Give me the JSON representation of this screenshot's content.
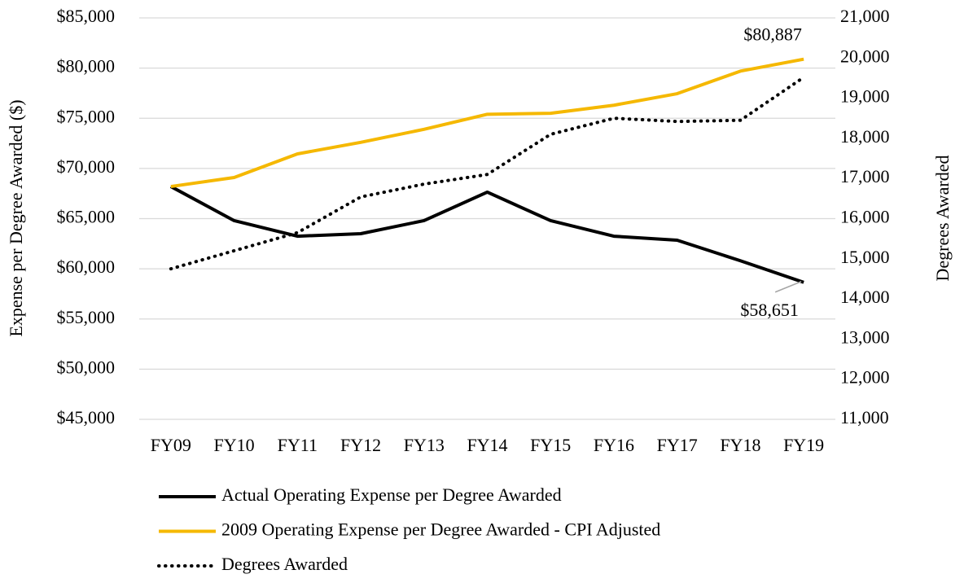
{
  "chart_data": {
    "type": "line",
    "categories": [
      "FY09",
      "FY10",
      "FY11",
      "FY12",
      "FY13",
      "FY14",
      "FY15",
      "FY16",
      "FY17",
      "FY18",
      "FY19"
    ],
    "series": [
      {
        "name": "Actual Operating Expense per Degree Awarded",
        "color": "#000000",
        "style": "solid",
        "values": [
          68200,
          64800,
          63250,
          63500,
          64800,
          67640,
          64800,
          63250,
          62850,
          60800,
          58651
        ],
        "value_labels": [
          null,
          null,
          null,
          null,
          null,
          null,
          null,
          null,
          null,
          null,
          "$58,651"
        ]
      },
      {
        "name": "2009 Operating Expense per Degree Awarded - CPI Adjusted",
        "color": "#f5b800",
        "style": "solid",
        "values": [
          68200,
          69100,
          71450,
          72600,
          73900,
          75400,
          75500,
          76300,
          77450,
          79700,
          80887
        ],
        "value_labels": [
          null,
          null,
          null,
          null,
          null,
          null,
          null,
          null,
          null,
          null,
          "$80,887"
        ]
      },
      {
        "name": "Degrees Awarded",
        "color": "#000000",
        "style": "dotted",
        "axis": "y2",
        "values": [
          14750,
          15200,
          15650,
          16540,
          16860,
          17100,
          18100,
          18500,
          18420,
          18450,
          19520
        ]
      }
    ],
    "ylabel": "Expense per Degree Awarded ($)",
    "y2label": "Degrees Awarded",
    "ylim": [
      45000,
      85000
    ],
    "yticks": [
      {
        "value": 45000,
        "label": "$45,000"
      },
      {
        "value": 50000,
        "label": "$50,000"
      },
      {
        "value": 55000,
        "label": "$55,000"
      },
      {
        "value": 60000,
        "label": "$60,000"
      },
      {
        "value": 65000,
        "label": "$65,000"
      },
      {
        "value": 70000,
        "label": "$70,000"
      },
      {
        "value": 75000,
        "label": "$75,000"
      },
      {
        "value": 80000,
        "label": "$80,000"
      },
      {
        "value": 85000,
        "label": "$85,000"
      }
    ],
    "y2lim": [
      11000,
      21000
    ],
    "y2ticks": [
      {
        "value": 11000,
        "label": "11,000"
      },
      {
        "value": 12000,
        "label": "12,000"
      },
      {
        "value": 13000,
        "label": "13,000"
      },
      {
        "value": 14000,
        "label": "14,000"
      },
      {
        "value": 15000,
        "label": "15,000"
      },
      {
        "value": 16000,
        "label": "16,000"
      },
      {
        "value": 17000,
        "label": "17,000"
      },
      {
        "value": 18000,
        "label": "18,000"
      },
      {
        "value": 19000,
        "label": "19,000"
      },
      {
        "value": 20000,
        "label": "20,000"
      },
      {
        "value": 21000,
        "label": "21,000"
      }
    ],
    "grid": true,
    "legend": "bottom"
  }
}
